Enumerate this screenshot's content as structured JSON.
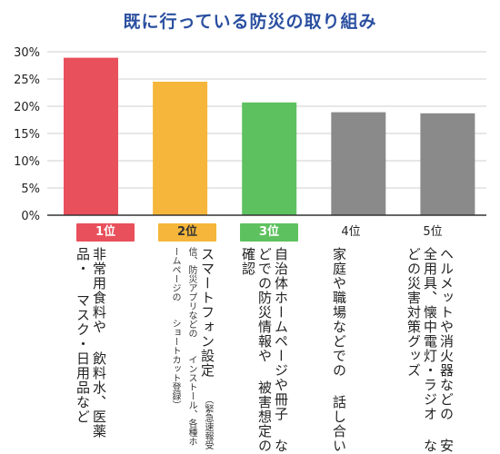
{
  "title": "既に行っている防災の取り組み",
  "colors": {
    "rank1": "#e8505b",
    "rank2": "#f5b63b",
    "rank3": "#5ec15f",
    "gray": "#8a8a8a",
    "axis": "#333333",
    "grid": "#cfcfcf"
  },
  "chart_data": {
    "type": "bar",
    "title": "既に行っている防災の取り組み",
    "yticks": [
      "0%",
      "5%",
      "10%",
      "15%",
      "20%",
      "25%",
      "30%"
    ],
    "ylim": [
      0,
      30
    ],
    "grid": true,
    "categories": [
      "非常用食料や飲料水、医薬品・マスク・日用品など",
      "スマートフォン設定",
      "自治体ホームページや冊子などでの防災情報や被害想定の確認",
      "家庭や職場などでの話し合い",
      "ヘルメットや消火器などの安全用具、懐中電灯・ラジオなどの災害対策グッズ"
    ],
    "values": [
      28.9,
      24.5,
      20.7,
      18.9,
      18.7
    ],
    "ranks": [
      "1位",
      "2位",
      "3位",
      "4位",
      "5位"
    ]
  },
  "labels": {
    "item1": [
      "非常用食料や",
      "飲料水、医薬品・",
      "マスク・日用品など"
    ],
    "item2": [
      "スマートフォン設定"
    ],
    "item2_note": [
      "（緊急速報受信、防災アプリなどの",
      "インストール、各種ホームページの",
      "ショートカット登録）"
    ],
    "item3": [
      "自治体ホームページや冊子",
      "などでの防災情報や",
      "被害想定の確認"
    ],
    "item4": [
      "家庭や職場などでの",
      "話し合い"
    ],
    "item5": [
      "ヘルメットや消火器などの",
      "安全用具、懐中電灯・ラジオ",
      "などの災害対策グッズ"
    ]
  }
}
